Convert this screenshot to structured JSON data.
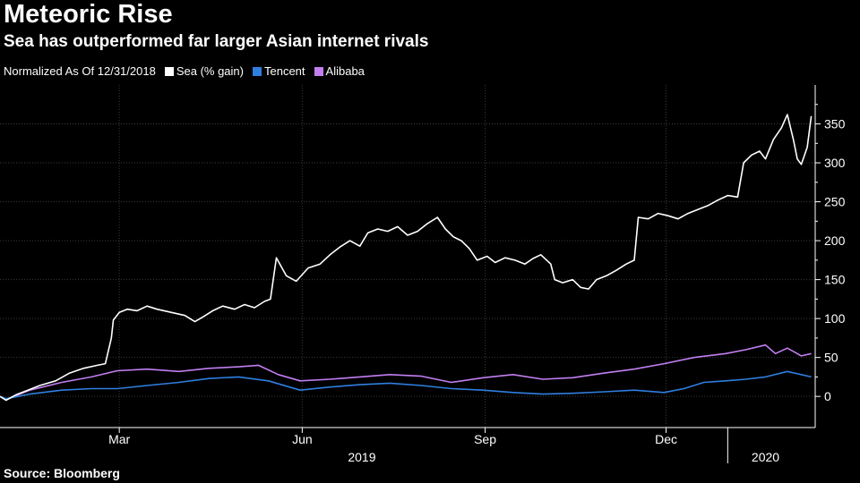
{
  "header": {
    "title": "Meteoric Rise",
    "subtitle": "Sea has outperformed far larger Asian internet rivals"
  },
  "legend": {
    "note": "Normalized As Of 12/31/2018"
  },
  "footer": {
    "source": "Source: Bloomberg"
  },
  "colors": {
    "background": "#000000",
    "grid": "#3a3a3a",
    "axis": "#ffffff",
    "sea": "#ffffff",
    "tencent": "#2f7fe0",
    "alibaba": "#c27ff2"
  },
  "chart_data": {
    "type": "line",
    "title": "Meteoric Rise",
    "subtitle": "Sea has outperformed far larger Asian internet rivals",
    "ylim": [
      -40,
      400
    ],
    "xlim": [
      "2018-12-31",
      "2020-02-14"
    ],
    "y_ticks": [
      0,
      50,
      100,
      150,
      200,
      250,
      300,
      350
    ],
    "x_ticks": [
      {
        "label": "Mar",
        "date": "2019-03-01"
      },
      {
        "label": "Jun",
        "date": "2019-06-01"
      },
      {
        "label": "Sep",
        "date": "2019-09-01"
      },
      {
        "label": "Dec",
        "date": "2019-12-01"
      }
    ],
    "x_year_labels": [
      {
        "label": "2019",
        "date": "2019-07-01"
      },
      {
        "label": "2020",
        "date": "2020-01-20"
      }
    ],
    "year_divider": "2020-01-01",
    "grid": true,
    "legend_position": "top-left",
    "series": [
      {
        "name": "Sea (% gain)",
        "color_key": "sea",
        "points": [
          [
            "2018-12-31",
            0
          ],
          [
            "2019-01-03",
            -5
          ],
          [
            "2019-01-08",
            2
          ],
          [
            "2019-01-14",
            8
          ],
          [
            "2019-01-20",
            14
          ],
          [
            "2019-01-28",
            20
          ],
          [
            "2019-02-04",
            30
          ],
          [
            "2019-02-11",
            36
          ],
          [
            "2019-02-18",
            40
          ],
          [
            "2019-02-22",
            42
          ],
          [
            "2019-02-25",
            75
          ],
          [
            "2019-02-26",
            98
          ],
          [
            "2019-03-01",
            108
          ],
          [
            "2019-03-05",
            112
          ],
          [
            "2019-03-10",
            110
          ],
          [
            "2019-03-15",
            116
          ],
          [
            "2019-03-20",
            112
          ],
          [
            "2019-03-27",
            108
          ],
          [
            "2019-04-03",
            104
          ],
          [
            "2019-04-08",
            96
          ],
          [
            "2019-04-12",
            102
          ],
          [
            "2019-04-17",
            110
          ],
          [
            "2019-04-22",
            116
          ],
          [
            "2019-04-28",
            112
          ],
          [
            "2019-05-03",
            118
          ],
          [
            "2019-05-08",
            114
          ],
          [
            "2019-05-13",
            122
          ],
          [
            "2019-05-16",
            125
          ],
          [
            "2019-05-19",
            178
          ],
          [
            "2019-05-24",
            155
          ],
          [
            "2019-05-29",
            148
          ],
          [
            "2019-06-04",
            165
          ],
          [
            "2019-06-10",
            170
          ],
          [
            "2019-06-15",
            182
          ],
          [
            "2019-06-20",
            192
          ],
          [
            "2019-06-25",
            200
          ],
          [
            "2019-06-30",
            193
          ],
          [
            "2019-07-04",
            210
          ],
          [
            "2019-07-09",
            215
          ],
          [
            "2019-07-14",
            212
          ],
          [
            "2019-07-19",
            218
          ],
          [
            "2019-07-24",
            207
          ],
          [
            "2019-07-29",
            212
          ],
          [
            "2019-08-03",
            222
          ],
          [
            "2019-08-08",
            230
          ],
          [
            "2019-08-12",
            215
          ],
          [
            "2019-08-16",
            205
          ],
          [
            "2019-08-20",
            200
          ],
          [
            "2019-08-24",
            190
          ],
          [
            "2019-08-28",
            175
          ],
          [
            "2019-09-02",
            180
          ],
          [
            "2019-09-06",
            172
          ],
          [
            "2019-09-11",
            178
          ],
          [
            "2019-09-16",
            175
          ],
          [
            "2019-09-21",
            170
          ],
          [
            "2019-09-25",
            177
          ],
          [
            "2019-09-29",
            182
          ],
          [
            "2019-10-04",
            170
          ],
          [
            "2019-10-06",
            150
          ],
          [
            "2019-10-10",
            146
          ],
          [
            "2019-10-15",
            150
          ],
          [
            "2019-10-19",
            140
          ],
          [
            "2019-10-23",
            138
          ],
          [
            "2019-10-27",
            150
          ],
          [
            "2019-11-01",
            155
          ],
          [
            "2019-11-06",
            162
          ],
          [
            "2019-11-11",
            170
          ],
          [
            "2019-11-15",
            175
          ],
          [
            "2019-11-17",
            230
          ],
          [
            "2019-11-22",
            228
          ],
          [
            "2019-11-27",
            235
          ],
          [
            "2019-12-02",
            232
          ],
          [
            "2019-12-07",
            228
          ],
          [
            "2019-12-12",
            235
          ],
          [
            "2019-12-17",
            240
          ],
          [
            "2019-12-22",
            245
          ],
          [
            "2019-12-27",
            252
          ],
          [
            "2020-01-01",
            258
          ],
          [
            "2020-01-06",
            256
          ],
          [
            "2020-01-09",
            300
          ],
          [
            "2020-01-13",
            310
          ],
          [
            "2020-01-17",
            315
          ],
          [
            "2020-01-20",
            305
          ],
          [
            "2020-01-24",
            330
          ],
          [
            "2020-01-28",
            345
          ],
          [
            "2020-01-31",
            362
          ],
          [
            "2020-02-03",
            330
          ],
          [
            "2020-02-05",
            305
          ],
          [
            "2020-02-07",
            298
          ],
          [
            "2020-02-10",
            320
          ],
          [
            "2020-02-12",
            360
          ]
        ]
      },
      {
        "name": "Tencent",
        "color_key": "tencent",
        "points": [
          [
            "2018-12-31",
            0
          ],
          [
            "2019-01-03",
            -3
          ],
          [
            "2019-01-15",
            3
          ],
          [
            "2019-01-31",
            8
          ],
          [
            "2019-02-15",
            10
          ],
          [
            "2019-02-28",
            10
          ],
          [
            "2019-03-15",
            14
          ],
          [
            "2019-03-31",
            18
          ],
          [
            "2019-04-15",
            23
          ],
          [
            "2019-04-30",
            25
          ],
          [
            "2019-05-15",
            20
          ],
          [
            "2019-05-31",
            8
          ],
          [
            "2019-06-15",
            12
          ],
          [
            "2019-06-30",
            15
          ],
          [
            "2019-07-15",
            17
          ],
          [
            "2019-07-31",
            14
          ],
          [
            "2019-08-15",
            10
          ],
          [
            "2019-08-31",
            8
          ],
          [
            "2019-09-15",
            5
          ],
          [
            "2019-09-30",
            3
          ],
          [
            "2019-10-15",
            4
          ],
          [
            "2019-10-31",
            6
          ],
          [
            "2019-11-15",
            8
          ],
          [
            "2019-11-30",
            5
          ],
          [
            "2019-12-10",
            10
          ],
          [
            "2019-12-20",
            18
          ],
          [
            "2019-12-31",
            20
          ],
          [
            "2020-01-10",
            22
          ],
          [
            "2020-01-20",
            25
          ],
          [
            "2020-01-31",
            32
          ],
          [
            "2020-02-07",
            28
          ],
          [
            "2020-02-12",
            25
          ]
        ]
      },
      {
        "name": "Alibaba",
        "color_key": "alibaba",
        "points": [
          [
            "2018-12-31",
            0
          ],
          [
            "2019-01-03",
            -4
          ],
          [
            "2019-01-15",
            8
          ],
          [
            "2019-01-31",
            18
          ],
          [
            "2019-02-15",
            25
          ],
          [
            "2019-02-28",
            33
          ],
          [
            "2019-03-15",
            35
          ],
          [
            "2019-03-31",
            32
          ],
          [
            "2019-04-15",
            36
          ],
          [
            "2019-04-30",
            38
          ],
          [
            "2019-05-10",
            40
          ],
          [
            "2019-05-20",
            28
          ],
          [
            "2019-05-31",
            20
          ],
          [
            "2019-06-15",
            22
          ],
          [
            "2019-06-30",
            25
          ],
          [
            "2019-07-15",
            28
          ],
          [
            "2019-07-31",
            26
          ],
          [
            "2019-08-15",
            18
          ],
          [
            "2019-08-31",
            24
          ],
          [
            "2019-09-15",
            28
          ],
          [
            "2019-09-30",
            22
          ],
          [
            "2019-10-15",
            24
          ],
          [
            "2019-10-31",
            30
          ],
          [
            "2019-11-15",
            35
          ],
          [
            "2019-11-30",
            42
          ],
          [
            "2019-12-15",
            50
          ],
          [
            "2019-12-31",
            55
          ],
          [
            "2020-01-10",
            60
          ],
          [
            "2020-01-20",
            66
          ],
          [
            "2020-01-25",
            55
          ],
          [
            "2020-01-31",
            62
          ],
          [
            "2020-02-07",
            52
          ],
          [
            "2020-02-12",
            55
          ]
        ]
      }
    ]
  }
}
